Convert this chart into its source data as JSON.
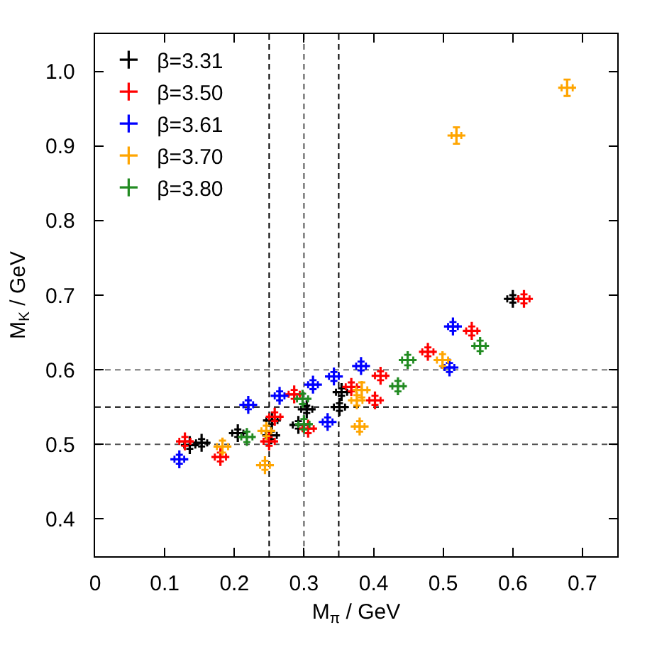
{
  "chart_data": {
    "type": "scatter",
    "xlabel": "M$_{π}$ / GeV",
    "ylabel": "M$_{K}$ / GeV",
    "xlim": [
      0,
      0.75
    ],
    "ylim": [
      0.35,
      1.05
    ],
    "xticks": [
      0,
      0.1,
      0.2,
      0.3,
      0.4,
      0.5,
      0.6,
      0.7
    ],
    "yticks": [
      0.4,
      0.5,
      0.6,
      0.7,
      0.8,
      0.9,
      {
        "value": 1.0,
        "label": "1.0"
      }
    ],
    "legend": "top left",
    "grid": false,
    "marker": "cross",
    "ref_lines": [
      {
        "axis": "x",
        "value": 0.25,
        "color": "#000000",
        "line_style": "dashed"
      },
      {
        "axis": "x",
        "value": 0.3,
        "color": "#555555",
        "line_style": "dashed"
      },
      {
        "axis": "x",
        "value": 0.35,
        "color": "#000000",
        "line_style": "dashed"
      },
      {
        "axis": "y",
        "value": 0.5,
        "color": "#555555",
        "line_style": "dashed"
      },
      {
        "axis": "y",
        "value": 0.55,
        "color": "#000000",
        "line_style": "dashed"
      },
      {
        "axis": "y",
        "value": 0.6,
        "color": "#777777",
        "line_style": "dashed"
      }
    ],
    "series": [
      {
        "name": "β=3.31",
        "color": "#000000",
        "x": [
          0.136,
          0.153,
          0.205,
          0.253,
          0.254,
          0.292,
          0.304,
          0.351,
          0.354,
          0.6
        ],
        "values": [
          0.499,
          0.502,
          0.515,
          0.512,
          0.532,
          0.526,
          0.547,
          0.55,
          0.57,
          0.695
        ],
        "xerrors": [
          0.008,
          0.008,
          0.008,
          0.008,
          0.008,
          0.008,
          0.008,
          0.008,
          0.008,
          0.008
        ],
        "errors": [
          0.005,
          0.005,
          0.005,
          0.005,
          0.005,
          0.005,
          0.005,
          0.005,
          0.005,
          0.005
        ]
      },
      {
        "name": "β=3.50",
        "color": "#ff0000",
        "x": [
          0.129,
          0.18,
          0.25,
          0.258,
          0.286,
          0.306,
          0.368,
          0.402,
          0.41,
          0.478,
          0.541,
          0.616
        ],
        "values": [
          0.504,
          0.483,
          0.504,
          0.537,
          0.567,
          0.521,
          0.577,
          0.559,
          0.592,
          0.624,
          0.652,
          0.695
        ],
        "xerrors": [
          0.008,
          0.008,
          0.008,
          0.008,
          0.008,
          0.008,
          0.008,
          0.008,
          0.008,
          0.008,
          0.008,
          0.008
        ],
        "errors": [
          0.006,
          0.006,
          0.006,
          0.006,
          0.006,
          0.006,
          0.006,
          0.006,
          0.006,
          0.006,
          0.006,
          0.006
        ]
      },
      {
        "name": "β=3.61",
        "color": "#0000ff",
        "x": [
          0.121,
          0.22,
          0.265,
          0.313,
          0.334,
          0.343,
          0.382,
          0.509,
          0.514
        ],
        "values": [
          0.48,
          0.553,
          0.565,
          0.58,
          0.53,
          0.591,
          0.605,
          0.603,
          0.658
        ],
        "xerrors": [
          0.007,
          0.007,
          0.007,
          0.007,
          0.007,
          0.007,
          0.007,
          0.007,
          0.007
        ],
        "errors": [
          0.006,
          0.006,
          0.006,
          0.006,
          0.006,
          0.006,
          0.006,
          0.006,
          0.006
        ]
      },
      {
        "name": "β=3.70",
        "color": "#ffa500",
        "x": [
          0.183,
          0.244,
          0.246,
          0.376,
          0.38,
          0.383,
          0.499,
          0.519,
          0.678
        ],
        "values": [
          0.497,
          0.472,
          0.518,
          0.559,
          0.524,
          0.573,
          0.613,
          0.914,
          0.978
        ],
        "xerrors": [
          0.008,
          0.007,
          0.007,
          0.008,
          0.007,
          0.008,
          0.008,
          0.007,
          0.008
        ],
        "errors": [
          0.008,
          0.006,
          0.007,
          0.007,
          0.007,
          0.01,
          0.008,
          0.011,
          0.011
        ]
      },
      {
        "name": "β=3.80",
        "color": "#228b22",
        "x": [
          0.218,
          0.298,
          0.3,
          0.435,
          0.449,
          0.553
        ],
        "values": [
          0.51,
          0.561,
          0.527,
          0.578,
          0.613,
          0.632
        ],
        "xerrors": [
          0.008,
          0.008,
          0.008,
          0.008,
          0.008,
          0.008
        ],
        "errors": [
          0.007,
          0.007,
          0.007,
          0.007,
          0.007,
          0.007
        ]
      }
    ]
  }
}
